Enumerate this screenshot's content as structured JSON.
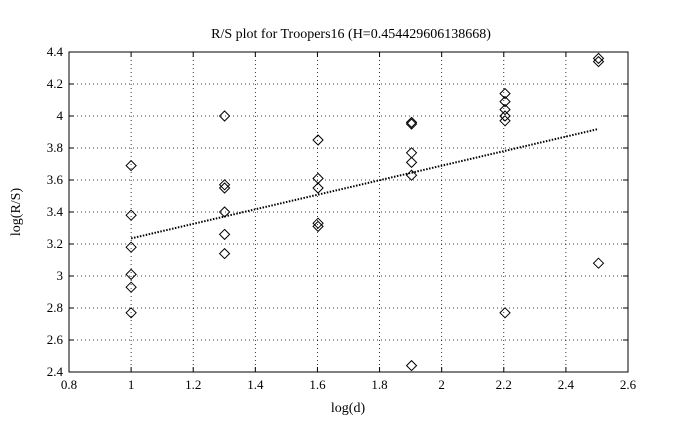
{
  "chart_data": {
    "type": "scatter",
    "title": "R/S plot for Troopers16 (H=0.454429606138668)",
    "xlabel": "log(d)",
    "ylabel": "log(R/S)",
    "xlim": [
      0.8,
      2.6
    ],
    "ylim": [
      2.4,
      4.4
    ],
    "xticks": [
      0.8,
      1,
      1.2,
      1.4,
      1.6,
      1.8,
      2,
      2.2,
      2.4,
      2.6
    ],
    "xtick_labels": [
      "0.8",
      "1",
      "1.2",
      "1.4",
      "1.6",
      "1.8",
      "2",
      "2.2",
      "2.4",
      "2.6"
    ],
    "yticks": [
      2.4,
      2.6,
      2.8,
      3,
      3.2,
      3.4,
      3.6,
      3.8,
      4,
      4.2,
      4.4
    ],
    "ytick_labels": [
      "2.4",
      "2.6",
      "2.8",
      "3",
      "3.2",
      "3.4",
      "3.6",
      "3.8",
      "4",
      "4.2",
      "4.4"
    ],
    "grid": true,
    "marker": "diamond",
    "points": [
      {
        "x": 1.0,
        "y": 3.69
      },
      {
        "x": 1.0,
        "y": 3.38
      },
      {
        "x": 1.0,
        "y": 3.18
      },
      {
        "x": 1.0,
        "y": 3.01
      },
      {
        "x": 1.0,
        "y": 2.93
      },
      {
        "x": 1.0,
        "y": 2.77
      },
      {
        "x": 1.301,
        "y": 4.0
      },
      {
        "x": 1.301,
        "y": 3.57
      },
      {
        "x": 1.301,
        "y": 3.55
      },
      {
        "x": 1.301,
        "y": 3.4
      },
      {
        "x": 1.301,
        "y": 3.26
      },
      {
        "x": 1.301,
        "y": 3.14
      },
      {
        "x": 1.602,
        "y": 3.85
      },
      {
        "x": 1.602,
        "y": 3.61
      },
      {
        "x": 1.602,
        "y": 3.55
      },
      {
        "x": 1.602,
        "y": 3.33
      },
      {
        "x": 1.602,
        "y": 3.31
      },
      {
        "x": 1.903,
        "y": 3.96
      },
      {
        "x": 1.903,
        "y": 3.95
      },
      {
        "x": 1.903,
        "y": 3.77
      },
      {
        "x": 1.903,
        "y": 3.71
      },
      {
        "x": 1.903,
        "y": 3.63
      },
      {
        "x": 1.903,
        "y": 2.44
      },
      {
        "x": 2.204,
        "y": 4.14
      },
      {
        "x": 2.204,
        "y": 4.09
      },
      {
        "x": 2.204,
        "y": 4.04
      },
      {
        "x": 2.204,
        "y": 4.0
      },
      {
        "x": 2.204,
        "y": 3.97
      },
      {
        "x": 2.204,
        "y": 2.77
      },
      {
        "x": 2.505,
        "y": 4.36
      },
      {
        "x": 2.505,
        "y": 4.34
      },
      {
        "x": 2.505,
        "y": 3.08
      }
    ],
    "fit_line": {
      "style": "dotted",
      "x": [
        1.0,
        2.505
      ],
      "y": [
        3.235,
        3.919
      ]
    }
  }
}
